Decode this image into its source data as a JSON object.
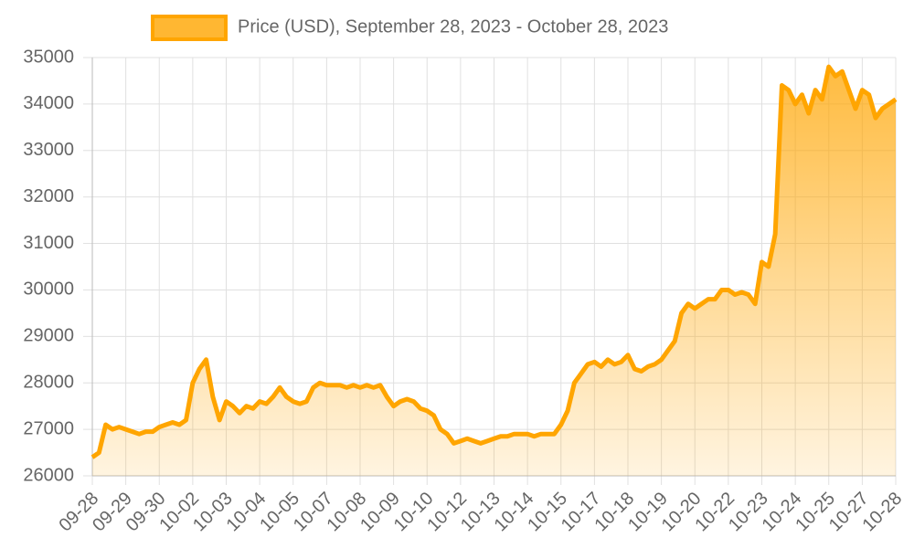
{
  "chart_data": {
    "type": "line",
    "grid": true,
    "fill": true,
    "legend": "top",
    "categories": [
      "09-28",
      null,
      null,
      null,
      null,
      "09-29",
      null,
      null,
      null,
      null,
      "09-30",
      null,
      null,
      null,
      null,
      "10-02",
      null,
      null,
      null,
      null,
      "10-03",
      null,
      null,
      null,
      null,
      "10-04",
      null,
      null,
      null,
      null,
      "10-05",
      null,
      null,
      null,
      null,
      "10-07",
      null,
      null,
      null,
      null,
      "10-08",
      null,
      null,
      null,
      null,
      "10-09",
      null,
      null,
      null,
      null,
      "10-10",
      null,
      null,
      null,
      null,
      "10-12",
      null,
      null,
      null,
      null,
      "10-13",
      null,
      null,
      null,
      null,
      "10-14",
      null,
      null,
      null,
      null,
      "10-15",
      null,
      null,
      null,
      null,
      "10-17",
      null,
      null,
      null,
      null,
      "10-18",
      null,
      null,
      null,
      null,
      "10-19",
      null,
      null,
      null,
      null,
      "10-20",
      null,
      null,
      null,
      null,
      "10-22",
      null,
      null,
      null,
      null,
      "10-23",
      null,
      null,
      null,
      null,
      "10-24",
      null,
      null,
      null,
      null,
      "10-25",
      null,
      null,
      null,
      null,
      "10-27",
      null,
      null,
      null,
      null,
      "10-28"
    ],
    "series": [
      {
        "name": "Price (USD), September 28, 2023 - October 28, 2023",
        "color": "#ffa500",
        "values": [
          26400,
          26500,
          27100,
          27000,
          27050,
          27000,
          26950,
          26900,
          26950,
          26950,
          27050,
          27100,
          27150,
          27100,
          27200,
          28000,
          28300,
          28500,
          27700,
          27200,
          27600,
          27500,
          27350,
          27500,
          27450,
          27600,
          27550,
          27700,
          27900,
          27700,
          27600,
          27550,
          27600,
          27900,
          28000,
          27950,
          27950,
          27950,
          27900,
          27950,
          27900,
          27950,
          27900,
          27950,
          27700,
          27500,
          27600,
          27650,
          27600,
          27450,
          27400,
          27300,
          27000,
          26900,
          26700,
          26750,
          26800,
          26750,
          26700,
          26750,
          26800,
          26850,
          26850,
          26900,
          26900,
          26900,
          26850,
          26900,
          26900,
          26900,
          27100,
          27400,
          28000,
          28200,
          28400,
          28450,
          28350,
          28500,
          28400,
          28450,
          28600,
          28300,
          28250,
          28350,
          28400,
          28500,
          28700,
          28900,
          29500,
          29700,
          29600,
          29700,
          29800,
          29800,
          30000,
          30000,
          29900,
          29950,
          29900,
          29700,
          30600,
          30500,
          31200,
          34400,
          34300,
          34000,
          34200,
          33800,
          34300,
          34100,
          34800,
          34600,
          34700,
          34300,
          33900,
          34300,
          34200,
          33700,
          33900,
          34000,
          34100
        ]
      }
    ],
    "ylim": [
      26000,
      35000
    ],
    "yticks": [
      26000,
      27000,
      28000,
      29000,
      30000,
      31000,
      32000,
      33000,
      34000,
      35000
    ]
  }
}
